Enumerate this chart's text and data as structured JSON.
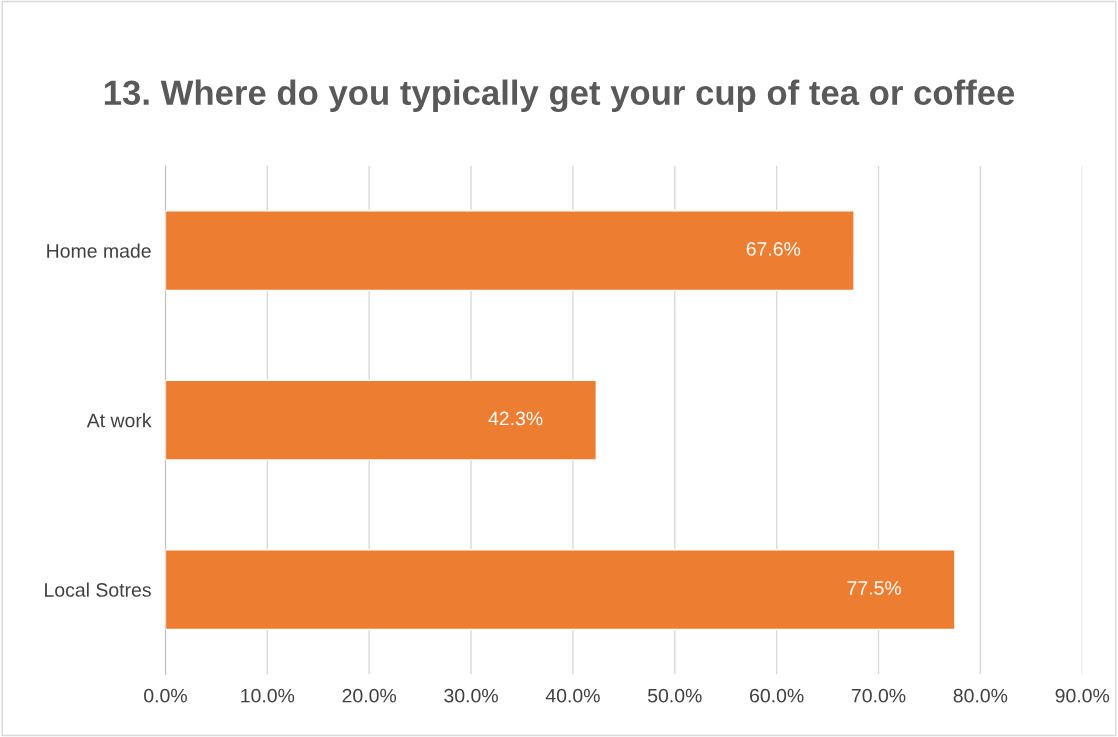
{
  "chart_data": {
    "type": "bar",
    "orientation": "horizontal",
    "title": "13. Where do you typically get your cup of tea or coffee",
    "categories": [
      "Home made",
      "At work",
      "Local Sotres"
    ],
    "values": [
      67.6,
      42.3,
      77.5
    ],
    "color": "#ed7d31",
    "value_labels": [
      "67.6%",
      "42.3%",
      "77.5%"
    ],
    "xlim": [
      0,
      90
    ],
    "xticks": [
      {
        "value": 0,
        "label": "0.0%"
      },
      {
        "value": 10,
        "label": "10.0%"
      },
      {
        "value": 20,
        "label": "20.0%"
      },
      {
        "value": 30,
        "label": "30.0%"
      },
      {
        "value": 40,
        "label": "40.0%"
      },
      {
        "value": 50,
        "label": "50.0%"
      },
      {
        "value": 60,
        "label": "60.0%"
      },
      {
        "value": 70,
        "label": "70.0%"
      },
      {
        "value": 80,
        "label": "80.0%"
      },
      {
        "value": 90,
        "label": "90.0%"
      }
    ],
    "grid": "x"
  }
}
